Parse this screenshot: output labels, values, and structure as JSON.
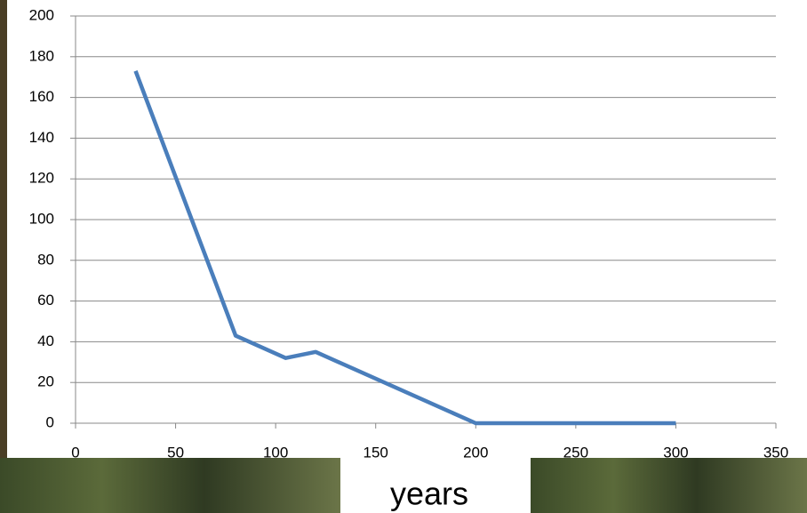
{
  "chart_data": {
    "type": "line",
    "x_label": "years",
    "x": [
      30,
      80,
      105,
      120,
      200,
      300
    ],
    "series": [
      {
        "color": "#4a7ebb",
        "values": [
          173,
          43,
          32,
          35,
          0,
          0
        ]
      }
    ],
    "xlim": [
      0,
      350
    ],
    "xticks": [
      0,
      50,
      100,
      150,
      200,
      250,
      300,
      350
    ],
    "ylim": [
      0,
      200
    ],
    "yticks": [
      0,
      20,
      40,
      60,
      80,
      100,
      120,
      140,
      160,
      180,
      200
    ],
    "grid": true
  }
}
